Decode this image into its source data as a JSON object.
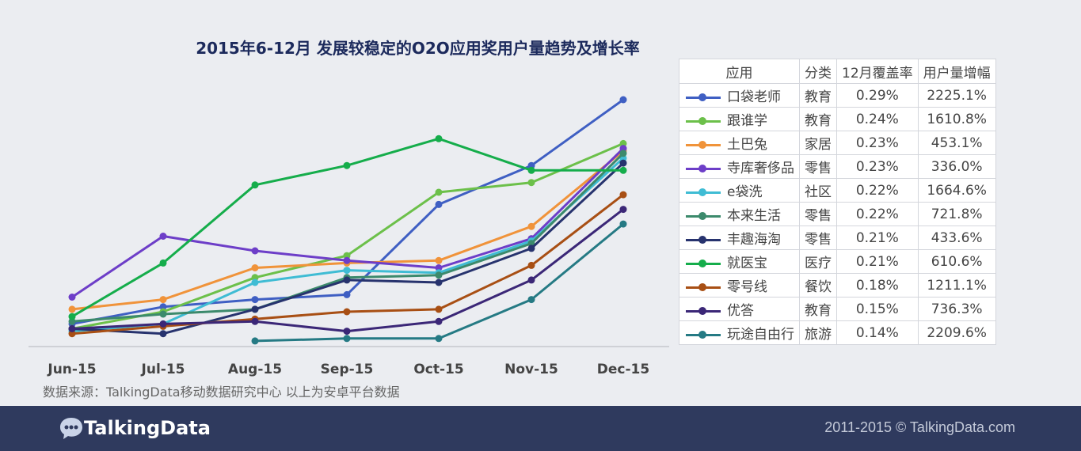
{
  "chart_data": {
    "type": "line",
    "title": "2015年6-12月  发展较稳定的O2O应用奖用户量趋势及增长率",
    "categories": [
      "Jun-15",
      "Jul-15",
      "Aug-15",
      "Sep-15",
      "Oct-15",
      "Nov-15",
      "Dec-15"
    ],
    "ylim": [
      0,
      100
    ],
    "grid": false,
    "legend": "right-table",
    "series": [
      {
        "name": "口袋老师",
        "category": "教育",
        "coverage": "0.29%",
        "growth": "2225.1%",
        "color": "#3f5fc3",
        "values": [
          8,
          15,
          18,
          20,
          57,
          73,
          100
        ]
      },
      {
        "name": "跟谁学",
        "category": "教育",
        "coverage": "0.24%",
        "growth": "1610.8%",
        "color": "#6cc04a",
        "values": [
          6,
          13,
          27,
          36,
          62,
          66,
          82
        ]
      },
      {
        "name": "土巴兔",
        "category": "家居",
        "coverage": "0.23%",
        "growth": "453.1%",
        "color": "#f0933a",
        "values": [
          14,
          18,
          31,
          33,
          34,
          48,
          79
        ]
      },
      {
        "name": "寺库奢侈品",
        "category": "零售",
        "coverage": "0.23%",
        "growth": "336.0%",
        "color": "#6d3ec8",
        "values": [
          19,
          44,
          38,
          34,
          31,
          43,
          80
        ]
      },
      {
        "name": "e袋洗",
        "category": "社区",
        "coverage": "0.22%",
        "growth": "1664.6%",
        "color": "#3fbcd4",
        "values": [
          5,
          8,
          25,
          30,
          29,
          42,
          76
        ]
      },
      {
        "name": "本来生活",
        "category": "零售",
        "coverage": "0.22%",
        "growth": "721.8%",
        "color": "#3c8a6c",
        "values": [
          9,
          12,
          14,
          27,
          28,
          41,
          78
        ]
      },
      {
        "name": "丰趣海淘",
        "category": "零售",
        "coverage": "0.21%",
        "growth": "433.6%",
        "color": "#27336e",
        "values": [
          6,
          4,
          14,
          26,
          25,
          39,
          74
        ]
      },
      {
        "name": "就医宝",
        "category": "医疗",
        "coverage": "0.21%",
        "growth": "610.6%",
        "color": "#15ad4b",
        "values": [
          11,
          33,
          65,
          73,
          84,
          71,
          71
        ]
      },
      {
        "name": "零号线",
        "category": "餐饮",
        "coverage": "0.18%",
        "growth": "1211.1%",
        "color": "#a84f14",
        "values": [
          4,
          7,
          10,
          13,
          14,
          32,
          61
        ]
      },
      {
        "name": "优答",
        "category": "教育",
        "coverage": "0.15%",
        "growth": "736.3%",
        "color": "#3b2777",
        "values": [
          6,
          8,
          9,
          5,
          9,
          26,
          55
        ]
      },
      {
        "name": "玩途自由行",
        "category": "旅游",
        "coverage": "0.14%",
        "growth": "2209.6%",
        "color": "#257a84",
        "values": [
          null,
          null,
          1,
          2,
          2,
          18,
          49
        ]
      }
    ]
  },
  "table": {
    "headers": [
      "应用",
      "分类",
      "12月覆盖率",
      "用户量增幅"
    ]
  },
  "source_note": "数据来源：TalkingData移动数据研究中心   以上为安卓平台数据",
  "footer": {
    "logo_text": "TalkingData",
    "copyright": "2011-2015 © TalkingData.com",
    "background": "#2f3a5e"
  }
}
